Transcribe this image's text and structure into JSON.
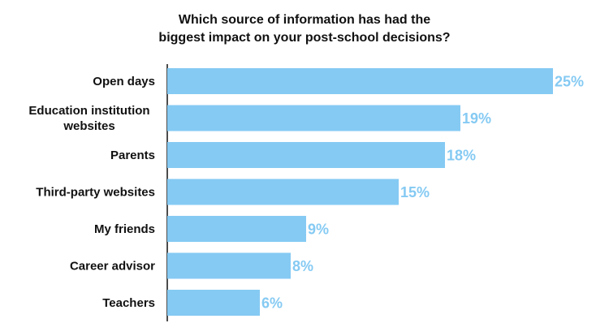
{
  "colors": {
    "bar": "#85caf3",
    "value_label": "#85caf3",
    "axis": "#111111",
    "text": "#111111"
  },
  "chart_data": {
    "type": "bar",
    "orientation": "horizontal",
    "title": "Which source of information has had the\nbiggest impact on your post-school decisions?",
    "categories": [
      [
        "Open days"
      ],
      [
        "Education institution",
        "websites"
      ],
      [
        "Parents"
      ],
      [
        "Third-party websites"
      ],
      [
        "My friends"
      ],
      [
        "Career advisor"
      ],
      [
        "Teachers"
      ]
    ],
    "values": [
      25,
      19,
      18,
      15,
      9,
      8,
      6
    ],
    "value_labels": [
      "25%",
      "19%",
      "18%",
      "15%",
      "9%",
      "8%",
      "6%"
    ],
    "unit": "%",
    "xlim": [
      0,
      25
    ],
    "grid": false,
    "legend": "none"
  }
}
